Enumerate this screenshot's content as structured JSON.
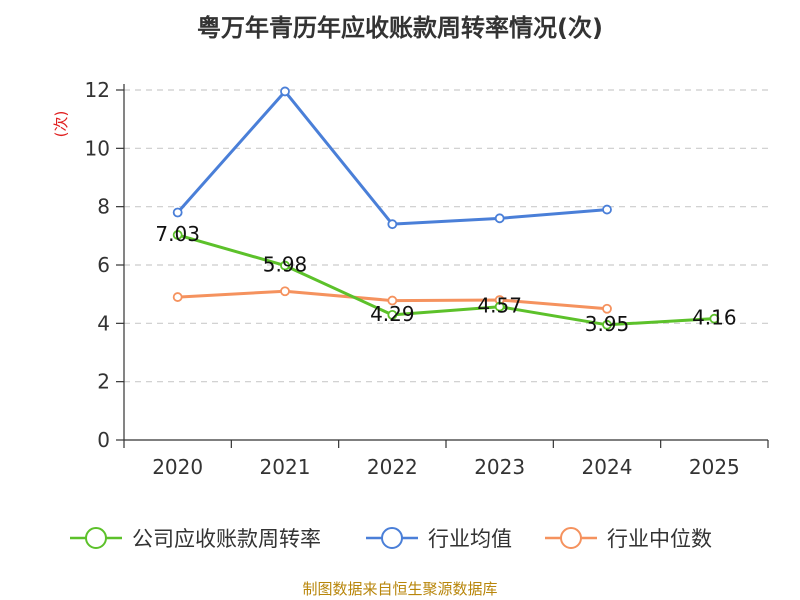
{
  "title": "粤万年青历年应收账款周转率情况(次)",
  "footer": "制图数据来自恒生聚源数据库",
  "chart_data": {
    "type": "line",
    "title": "粤万年青历年应收账款周转率情况(次)",
    "ylabel": "(次)",
    "xlabel": "",
    "categories": [
      "2020",
      "2021",
      "2022",
      "2023",
      "2024",
      "2025"
    ],
    "ylim": [
      0,
      12
    ],
    "yticks": [
      0,
      2,
      4,
      6,
      8,
      10,
      12
    ],
    "grid": true,
    "legend_position": "bottom",
    "series": [
      {
        "name": "公司应收账款周转率",
        "color": "#5cc12a",
        "values": [
          7.03,
          5.98,
          4.29,
          4.57,
          3.95,
          4.16
        ],
        "labels": [
          "7.03",
          "5.98",
          "4.29",
          "4.57",
          "3.95",
          "4.16"
        ],
        "show_labels": true
      },
      {
        "name": "行业均值",
        "color": "#4a7fd8",
        "values": [
          7.8,
          11.95,
          7.4,
          7.6,
          7.9,
          null
        ],
        "show_labels": false
      },
      {
        "name": "行业中位数",
        "color": "#f5925e",
        "values": [
          4.9,
          5.1,
          4.78,
          4.8,
          4.5,
          null
        ],
        "show_labels": false
      }
    ]
  }
}
